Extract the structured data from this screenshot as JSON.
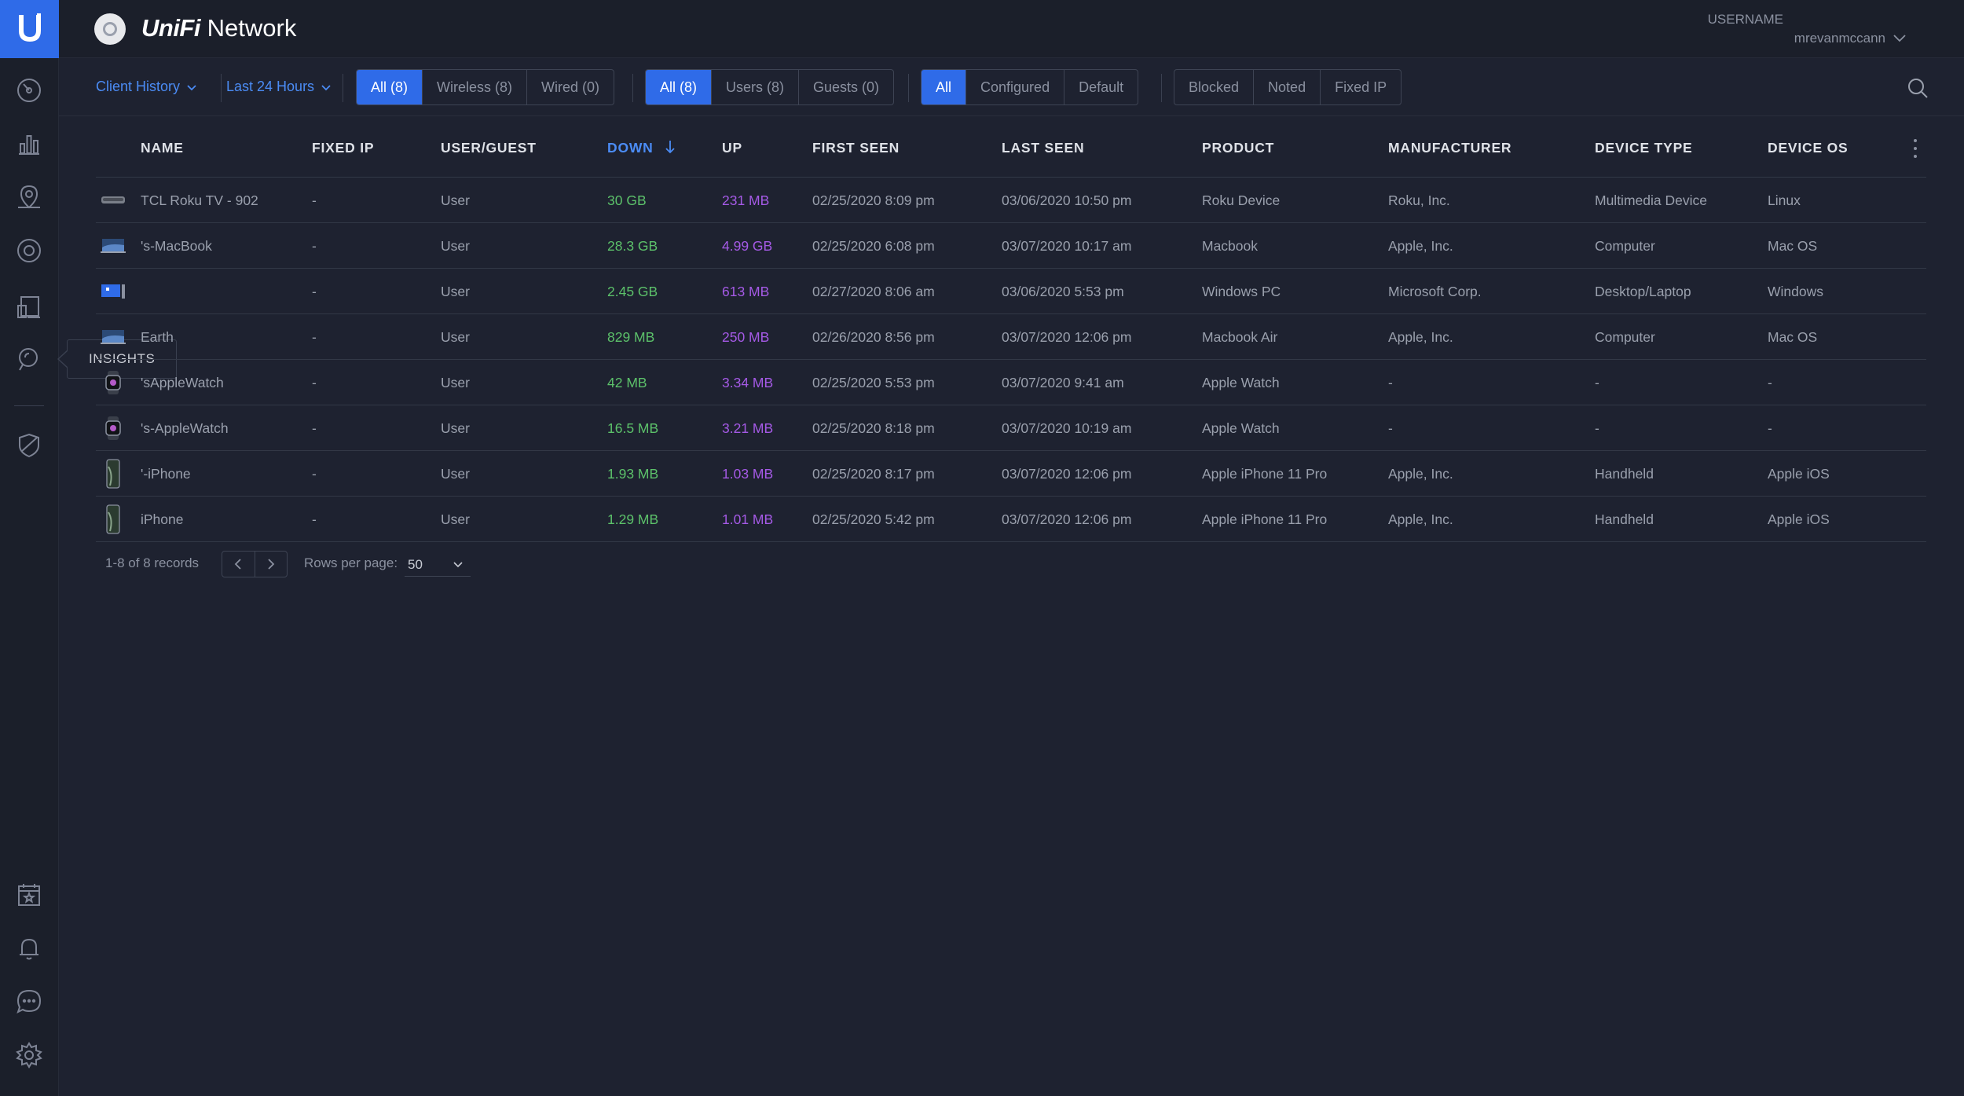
{
  "app": {
    "brand_prefix": "UniFi",
    "brand_suffix": "Network"
  },
  "user": {
    "label": "USERNAME",
    "name": "mrevanmccann"
  },
  "sidebar": {
    "items": [
      {
        "name": "dashboard",
        "icon": "dashboard-icon"
      },
      {
        "name": "statistics",
        "icon": "statistics-icon"
      },
      {
        "name": "map",
        "icon": "map-icon"
      },
      {
        "name": "devices",
        "icon": "devices-icon"
      },
      {
        "name": "clients",
        "icon": "clients-icon"
      },
      {
        "name": "insights",
        "icon": "insights-icon"
      },
      {
        "name": "threat-management",
        "icon": "shield-icon"
      },
      {
        "name": "events",
        "icon": "calendar-icon"
      },
      {
        "name": "alerts",
        "icon": "bell-icon"
      },
      {
        "name": "chat",
        "icon": "chat-icon"
      },
      {
        "name": "settings",
        "icon": "gear-icon"
      }
    ],
    "tooltip": "INSIGHTS"
  },
  "filters": {
    "view_dropdown": "Client History",
    "time_dropdown": "Last 24 Hours",
    "connection": [
      "All (8)",
      "Wireless (8)",
      "Wired (0)"
    ],
    "user_type": [
      "All (8)",
      "Users (8)",
      "Guests (0)"
    ],
    "config": [
      "All",
      "Configured",
      "Default"
    ],
    "status": [
      "Blocked",
      "Noted",
      "Fixed IP"
    ]
  },
  "table": {
    "headers": {
      "name": "NAME",
      "fixed_ip": "FIXED IP",
      "user_guest": "USER/GUEST",
      "down": "DOWN",
      "up": "UP",
      "first_seen": "FIRST SEEN",
      "last_seen": "LAST SEEN",
      "product": "PRODUCT",
      "manufacturer": "MANUFACTURER",
      "device_type": "DEVICE TYPE",
      "device_os": "DEVICE OS"
    },
    "rows": [
      {
        "icon": "tv-icon",
        "name_hidden": "",
        "name": "TCL Roku TV - 902",
        "fixed_ip": "-",
        "user_guest": "User",
        "down": "30 GB",
        "up": "231 MB",
        "first_seen": "02/25/2020 8:09 pm",
        "last_seen": "03/06/2020 10:50 pm",
        "product": "Roku Device",
        "manufacturer": "Roku, Inc.",
        "device_type": "Multimedia Device",
        "device_os": "Linux"
      },
      {
        "icon": "laptop-icon",
        "name_hidden": "",
        "name": "'s-MacBook",
        "fixed_ip": "-",
        "user_guest": "User",
        "down": "28.3 GB",
        "up": "4.99 GB",
        "first_seen": "02/25/2020 6:08 pm",
        "last_seen": "03/07/2020 10:17 am",
        "product": "Macbook",
        "manufacturer": "Apple, Inc.",
        "device_type": "Computer",
        "device_os": "Mac OS"
      },
      {
        "icon": "desktop-icon",
        "name_hidden": "",
        "name": "",
        "fixed_ip": "-",
        "user_guest": "User",
        "down": "2.45 GB",
        "up": "613 MB",
        "first_seen": "02/27/2020 8:06 am",
        "last_seen": "03/06/2020 5:53 pm",
        "product": "Windows PC",
        "manufacturer": "Microsoft Corp.",
        "device_type": "Desktop/Laptop",
        "device_os": "Windows"
      },
      {
        "icon": "laptop-icon",
        "name_hidden": "",
        "name": "Earth",
        "fixed_ip": "-",
        "user_guest": "User",
        "down": "829 MB",
        "up": "250 MB",
        "first_seen": "02/26/2020 8:56 pm",
        "last_seen": "03/07/2020 12:06 pm",
        "product": "Macbook Air",
        "manufacturer": "Apple, Inc.",
        "device_type": "Computer",
        "device_os": "Mac OS"
      },
      {
        "icon": "watch-icon",
        "name_hidden": "",
        "name": "'sAppleWatch",
        "fixed_ip": "-",
        "user_guest": "User",
        "down": "42 MB",
        "up": "3.34 MB",
        "first_seen": "02/25/2020 5:53 pm",
        "last_seen": "03/07/2020 9:41 am",
        "product": "Apple Watch",
        "manufacturer": "-",
        "device_type": "-",
        "device_os": "-"
      },
      {
        "icon": "watch-icon",
        "name_hidden": "",
        "name": "'s-AppleWatch",
        "fixed_ip": "-",
        "user_guest": "User",
        "down": "16.5 MB",
        "up": "3.21 MB",
        "first_seen": "02/25/2020 8:18 pm",
        "last_seen": "03/07/2020 10:19 am",
        "product": "Apple Watch",
        "manufacturer": "-",
        "device_type": "-",
        "device_os": "-"
      },
      {
        "icon": "phone-icon",
        "name_hidden": "",
        "name": "'-iPhone",
        "fixed_ip": "-",
        "user_guest": "User",
        "down": "1.93 MB",
        "up": "1.03 MB",
        "first_seen": "02/25/2020 8:17 pm",
        "last_seen": "03/07/2020 12:06 pm",
        "product": "Apple iPhone 11 Pro",
        "manufacturer": "Apple, Inc.",
        "device_type": "Handheld",
        "device_os": "Apple iOS"
      },
      {
        "icon": "phone-icon",
        "name_hidden": "",
        "name": "iPhone",
        "fixed_ip": "-",
        "user_guest": "User",
        "down": "1.29 MB",
        "up": "1.01 MB",
        "first_seen": "02/25/2020 5:42 pm",
        "last_seen": "03/07/2020 12:06 pm",
        "product": "Apple iPhone 11 Pro",
        "manufacturer": "Apple, Inc.",
        "device_type": "Handheld",
        "device_os": "Apple iOS"
      }
    ]
  },
  "footer": {
    "records": "1-8 of 8 records",
    "rows_per_page_label": "Rows per page:",
    "rows_per_page": "50"
  },
  "colors": {
    "accent": "#2f6be8",
    "down": "#5cc16a",
    "up": "#a55ae6"
  }
}
